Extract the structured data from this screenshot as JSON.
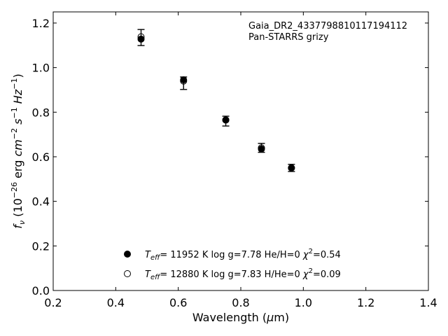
{
  "chart_data": {
    "type": "scatter",
    "annotation_lines": [
      "Gaia_DR2_4337798810117194112",
      "Pan-STARRS grizy"
    ],
    "xlabel_main": "Wavelength (",
    "xlabel_mu": "μ",
    "xlabel_unit": "m)",
    "ylabel_f": "f",
    "ylabel_nu": "ν",
    "ylabel_rest": " (10",
    "ylabel_exp1": "−26",
    "ylabel_erg": " erg ",
    "ylabel_cm": "cm",
    "ylabel_exp2": "−2",
    "ylabel_s": " s",
    "ylabel_exp3": "−1",
    "ylabel_hz": " Hz",
    "ylabel_exp4": "−1",
    "ylabel_close": ")",
    "xlim": [
      0.2,
      1.4
    ],
    "ylim": [
      0.0,
      1.25
    ],
    "xticks": [
      "0.2",
      "0.4",
      "0.6",
      "0.8",
      "1.0",
      "1.2",
      "1.4"
    ],
    "yticks": [
      "0.0",
      "0.2",
      "0.4",
      "0.6",
      "0.8",
      "1.0",
      "1.2"
    ],
    "grid": false,
    "legend_position": "bottom-center",
    "observed": {
      "x": [
        0.481,
        0.617,
        0.752,
        0.866,
        0.962
      ],
      "y": [
        1.135,
        0.93,
        0.76,
        0.64,
        0.55
      ],
      "yerr": [
        0.036,
        0.028,
        0.022,
        0.02,
        0.016
      ]
    },
    "series": [
      {
        "marker": "filled",
        "label_T": "T",
        "label_eff": "eff",
        "label_text": "= 11952 K  log g=7.78  He/H=0  ",
        "label_chi": "χ",
        "label_chi_exp": "2",
        "label_chi_val": "=0.54",
        "x": [
          0.481,
          0.617,
          0.752,
          0.866,
          0.962
        ],
        "y": [
          1.128,
          0.945,
          0.765,
          0.635,
          0.55
        ]
      },
      {
        "marker": "open",
        "label_T": "T",
        "label_eff": "eff",
        "label_text": "= 12880 K  log g=7.83  H/He=0  ",
        "label_chi": "χ",
        "label_chi_exp": "2",
        "label_chi_val": "=0.09",
        "x": [
          0.481,
          0.617,
          0.752,
          0.866,
          0.962
        ],
        "y": [
          1.138,
          0.94,
          0.765,
          0.64,
          0.55
        ]
      }
    ]
  }
}
